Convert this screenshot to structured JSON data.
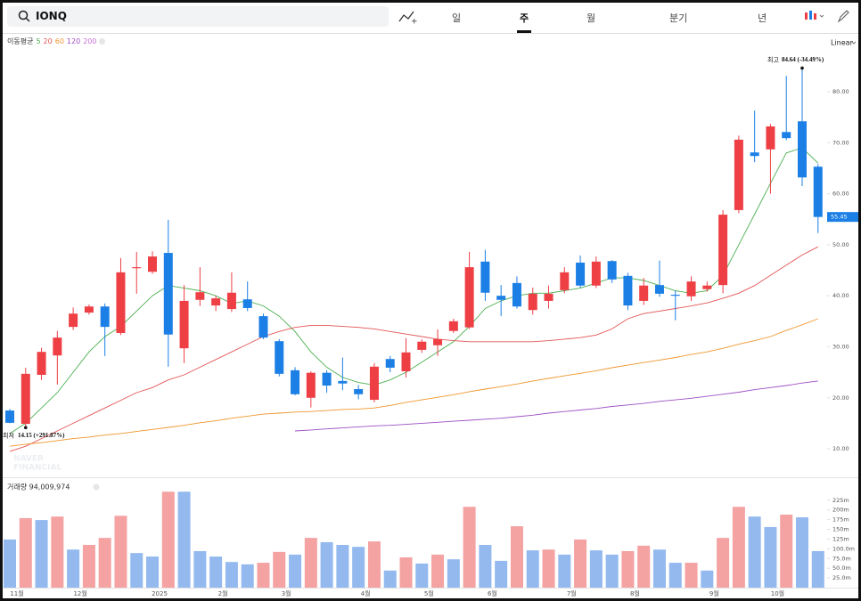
{
  "header": {
    "search": "IONQ",
    "tabs": [
      "일",
      "주",
      "월",
      "분기",
      "년"
    ],
    "active_tab": 1
  },
  "legend": {
    "label": "이동평균",
    "scale": "Linear"
  },
  "chart_data": {
    "type": "candlestick",
    "categories": [
      "11월",
      null,
      null,
      null,
      "12월",
      null,
      null,
      null,
      null,
      "2025",
      null,
      null,
      null,
      "2월",
      null,
      null,
      null,
      "3월",
      null,
      null,
      null,
      null,
      "4월",
      null,
      null,
      null,
      "5월",
      null,
      null,
      null,
      "6월",
      null,
      null,
      null,
      null,
      "7월",
      null,
      null,
      null,
      "8월",
      null,
      null,
      null,
      null,
      "9월",
      null,
      null,
      null,
      "10월",
      null,
      null,
      null
    ],
    "open": [
      17.5,
      14.9,
      24.5,
      28.3,
      33.9,
      36.7,
      37.9,
      32.7,
      45.4,
      44.7,
      48.4,
      29.7,
      39.2,
      38.1,
      37.4,
      39.3,
      36.0,
      31.1,
      25.4,
      20.0,
      24.9,
      23.3,
      21.7,
      19.6,
      27.6,
      25.2,
      29.4,
      30.3,
      33.1,
      33.8,
      46.7,
      40.0,
      42.5,
      37.2,
      39.0,
      41.1,
      46.5,
      42.0,
      46.8,
      43.9,
      39.0,
      42.1,
      40.2,
      39.9,
      41.3,
      42.1,
      56.8,
      68.1,
      68.7,
      72.1,
      74.2,
      65.3
    ],
    "high": [
      17.8,
      25.9,
      29.8,
      33.1,
      37.7,
      38.3,
      38.5,
      47.4,
      48.6,
      48.7,
      54.9,
      42.1,
      45.6,
      40.0,
      44.6,
      42.8,
      36.5,
      31.5,
      26.0,
      25.2,
      25.4,
      27.9,
      22.5,
      26.8,
      28.2,
      31.7,
      31.5,
      33.4,
      35.5,
      48.6,
      49.0,
      42.1,
      43.8,
      41.6,
      42.0,
      45.6,
      47.9,
      47.7,
      47.0,
      44.5,
      43.5,
      46.9,
      41.0,
      43.8,
      42.8,
      56.8,
      71.4,
      76.3,
      73.7,
      83.1,
      84.64,
      65.8
    ],
    "low": [
      15.0,
      14.15,
      23.5,
      22.6,
      33.3,
      36.3,
      28.2,
      32.3,
      40.4,
      44.3,
      26.1,
      26.8,
      38.0,
      37.0,
      36.8,
      37.0,
      31.5,
      24.2,
      20.5,
      18.1,
      21.0,
      21.5,
      19.7,
      19.1,
      25.0,
      24.0,
      28.8,
      28.2,
      32.7,
      33.5,
      39.0,
      36.0,
      37.5,
      36.3,
      37.5,
      40.5,
      41.6,
      41.5,
      42.5,
      37.2,
      38.2,
      39.8,
      35.2,
      39.0,
      40.8,
      40.5,
      56.2,
      66.2,
      60.0,
      70.5,
      61.5,
      52.3
    ],
    "close": [
      15.1,
      24.7,
      29.0,
      31.8,
      36.5,
      37.9,
      33.9,
      44.6,
      45.6,
      47.7,
      32.4,
      39.0,
      40.7,
      39.5,
      40.6,
      37.6,
      31.8,
      24.7,
      20.7,
      24.9,
      22.4,
      22.8,
      20.7,
      26.1,
      25.9,
      28.9,
      31.0,
      31.5,
      35.0,
      45.6,
      40.6,
      39.2,
      37.9,
      40.4,
      40.4,
      44.6,
      42.0,
      46.7,
      43.2,
      38.1,
      42.0,
      40.4,
      40.0,
      42.8,
      42.0,
      55.9,
      70.6,
      67.4,
      73.2,
      70.9,
      63.2,
      55.45
    ],
    "up_color": "#ee3f45",
    "down_color": "#1b7fe6",
    "ylim": [
      4.6,
      91
    ],
    "yticks": [
      {
        "value": 10,
        "label": "10.00"
      },
      {
        "value": 20,
        "label": "20.00"
      },
      {
        "value": 30,
        "label": "30.00"
      },
      {
        "value": 40,
        "label": "40.00"
      },
      {
        "value": 50,
        "label": "50.00"
      },
      {
        "value": 60,
        "label": "60.00"
      },
      {
        "value": 70,
        "label": "70.00"
      },
      {
        "value": 80,
        "label": "80.00"
      }
    ],
    "grid": false,
    "ma": [
      {
        "name": "5",
        "color": "#4caf50",
        "values": [
          13,
          15,
          18,
          21,
          25,
          29,
          32,
          34,
          37,
          40,
          42,
          41.5,
          41,
          40,
          38.5,
          39,
          38,
          36,
          33,
          29,
          26,
          24,
          23,
          22.5,
          23.5,
          25,
          27,
          29,
          31,
          34,
          37.5,
          39,
          40,
          40.5,
          40.5,
          41,
          41.5,
          42.5,
          43.5,
          43.5,
          43,
          42,
          41,
          40.5,
          41,
          44,
          50,
          56,
          62,
          68,
          69,
          66
        ]
      },
      {
        "name": "20",
        "color": "#e35454",
        "values": [
          9.5,
          10.5,
          12,
          13.5,
          15,
          16.5,
          18,
          19.5,
          21,
          22,
          23.5,
          24.5,
          26,
          27.5,
          29,
          30.5,
          32,
          33,
          33.8,
          34.2,
          34.2,
          34,
          33.8,
          33.5,
          33,
          32.5,
          32,
          31.5,
          31.2,
          31,
          31,
          31,
          31,
          31,
          31.2,
          31.5,
          31.8,
          32.3,
          33.5,
          35.5,
          36.5,
          37,
          37.5,
          38,
          38.6,
          39.5,
          40.5,
          42,
          44,
          46,
          48,
          49.6
        ]
      },
      {
        "name": "60",
        "color": "#f0962e",
        "values": [
          10.5,
          10.9,
          11.2,
          11.6,
          12,
          12.3,
          12.7,
          13,
          13.4,
          13.8,
          14.2,
          14.6,
          15.1,
          15.5,
          16,
          16.4,
          16.8,
          17,
          17.2,
          17.3,
          17.5,
          17.7,
          17.8,
          18,
          18.5,
          19.1,
          19.6,
          20.1,
          20.6,
          21.2,
          21.7,
          22.2,
          22.7,
          23.3,
          23.8,
          24.3,
          24.8,
          25.3,
          25.9,
          26.4,
          26.9,
          27.4,
          27.9,
          28.5,
          29,
          29.7,
          30.5,
          31.2,
          32,
          33.2,
          34.3,
          35.5
        ]
      },
      {
        "name": "120",
        "color": "#9c4fc4",
        "values": [
          null,
          null,
          null,
          null,
          null,
          null,
          null,
          null,
          null,
          null,
          null,
          null,
          null,
          null,
          null,
          null,
          null,
          null,
          13.5,
          13.7,
          13.9,
          14.1,
          14.3,
          14.5,
          14.6,
          14.8,
          15,
          15.2,
          15.4,
          15.6,
          15.8,
          16,
          16.3,
          16.6,
          17,
          17.3,
          17.6,
          17.9,
          18.3,
          18.6,
          18.9,
          19.3,
          19.6,
          19.9,
          20.3,
          20.7,
          21.1,
          21.6,
          22,
          22.4,
          22.9,
          23.3
        ]
      },
      {
        "name": "200",
        "color": "#c86dd7",
        "values": [
          null,
          null,
          null,
          null,
          null,
          null,
          null,
          null,
          null,
          null,
          null,
          null,
          null,
          null,
          null,
          null,
          null,
          null,
          null,
          null,
          null,
          null,
          null,
          null,
          null,
          null,
          null,
          null,
          null,
          null,
          null,
          null,
          null,
          null,
          null,
          null,
          null,
          null,
          null,
          null,
          null,
          null,
          null,
          null,
          null,
          null,
          null,
          null,
          null,
          null,
          null,
          null
        ]
      }
    ],
    "annotations": {
      "high": {
        "index": 50,
        "label": "최고",
        "text": "84.64 (-34.49%)"
      },
      "low": {
        "index": 1,
        "label": "최저",
        "text": "14.15 (+291.87%)"
      }
    },
    "watermark": [
      "NAVER",
      "FINANCIAL"
    ],
    "volume": {
      "label": "거래량 94,009,974",
      "values": [
        124,
        179,
        174,
        183,
        98,
        110,
        128,
        185,
        89,
        80,
        247,
        247,
        94,
        80,
        66,
        60,
        64,
        92,
        85,
        128,
        117,
        110,
        105,
        119,
        44,
        78,
        62,
        85,
        73,
        208,
        110,
        69,
        158,
        96,
        98,
        85,
        124,
        96,
        85,
        94,
        108,
        98,
        64,
        64,
        44,
        128,
        208,
        183,
        156,
        188,
        181,
        94.009974
      ],
      "colors": [
        "#93b9ef",
        "#f4a2a2",
        "#93b9ef",
        "#f4a2a2",
        "#93b9ef",
        "#f4a2a2",
        "#f4a2a2",
        "#f4a2a2",
        "#93b9ef",
        "#93b9ef",
        "#f4a2a2",
        "#93b9ef",
        "#93b9ef",
        "#93b9ef",
        "#93b9ef",
        "#93b9ef",
        "#f4a2a2",
        "#f4a2a2",
        "#93b9ef",
        "#f4a2a2",
        "#93b9ef",
        "#93b9ef",
        "#93b9ef",
        "#f4a2a2",
        "#93b9ef",
        "#f4a2a2",
        "#93b9ef",
        "#f4a2a2",
        "#93b9ef",
        "#f4a2a2",
        "#93b9ef",
        "#93b9ef",
        "#f4a2a2",
        "#93b9ef",
        "#f4a2a2",
        "#93b9ef",
        "#f4a2a2",
        "#93b9ef",
        "#93b9ef",
        "#f4a2a2",
        "#f4a2a2",
        "#93b9ef",
        "#93b9ef",
        "#f4a2a2",
        "#93b9ef",
        "#f4a2a2",
        "#f4a2a2",
        "#93b9ef",
        "#93b9ef",
        "#f4a2a2",
        "#93b9ef",
        "#93b9ef"
      ],
      "ylim": [
        0,
        275
      ],
      "yticks": [
        {
          "value": 25,
          "label": "25.0m"
        },
        {
          "value": 50,
          "label": "50.0m"
        },
        {
          "value": 75,
          "label": "75.0m"
        },
        {
          "value": 100,
          "label": "100.0m"
        },
        {
          "value": 125,
          "label": "125m"
        },
        {
          "value": 150,
          "label": "150m"
        },
        {
          "value": 175,
          "label": "175m"
        },
        {
          "value": 200,
          "label": "200m"
        },
        {
          "value": 225,
          "label": "225m"
        }
      ]
    }
  }
}
